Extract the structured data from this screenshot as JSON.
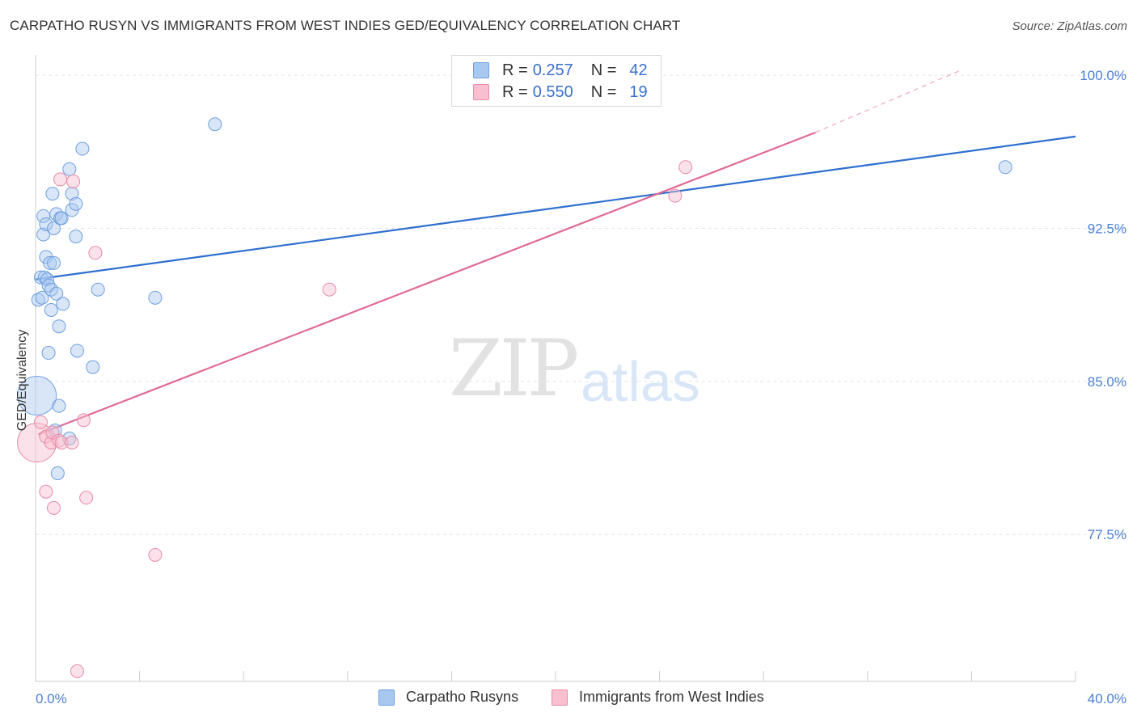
{
  "title": "CARPATHO RUSYN VS IMMIGRANTS FROM WEST INDIES GED/EQUIVALENCY CORRELATION CHART",
  "source": "Source: ZipAtlas.com",
  "watermark": {
    "zip": "ZIP",
    "atlas": "atlas"
  },
  "legend": {
    "rows": [
      {
        "r_label": "R =",
        "r_value": "0.257",
        "n_label": "N =",
        "n_value": "42",
        "color": "#a9c8f0",
        "border": "#6e9fe0"
      },
      {
        "r_label": "R =",
        "r_value": "0.550",
        "n_label": "N =",
        "n_value": "19",
        "color": "#f7bfd0",
        "border": "#e98aa8"
      }
    ]
  },
  "bottom_legend": {
    "items": [
      {
        "label": "Carpatho Rusyns",
        "color": "#a9c8f0",
        "border": "#6e9fe0"
      },
      {
        "label": "Immigrants from West Indies",
        "color": "#f7bfd0",
        "border": "#e98aa8"
      }
    ]
  },
  "chart_data": {
    "type": "scatter",
    "title": "CARPATHO RUSYN VS IMMIGRANTS FROM WEST INDIES GED/EQUIVALENCY CORRELATION CHART",
    "xlabel": "",
    "ylabel": "GED/Equivalency",
    "xlim": [
      0,
      40
    ],
    "ylim": [
      70.3,
      100.6
    ],
    "x_tick_labels": [
      "0.0%",
      "40.0%"
    ],
    "y_ticks": [
      77.5,
      85.0,
      92.5,
      100.0
    ],
    "y_tick_labels": [
      "77.5%",
      "85.0%",
      "92.5%",
      "100.0%"
    ],
    "grid": true,
    "series": [
      {
        "name": "Carpatho Rusyns",
        "color": "#6e9fe0",
        "fill": "#a9c8f0",
        "points": [
          {
            "x": 0.05,
            "y": 84.3,
            "big": true
          },
          {
            "x": 0.1,
            "y": 89.0
          },
          {
            "x": 0.2,
            "y": 90.1
          },
          {
            "x": 0.25,
            "y": 89.1
          },
          {
            "x": 0.3,
            "y": 93.1
          },
          {
            "x": 0.3,
            "y": 92.2
          },
          {
            "x": 0.35,
            "y": 90.1
          },
          {
            "x": 0.4,
            "y": 91.1
          },
          {
            "x": 0.4,
            "y": 92.7
          },
          {
            "x": 0.45,
            "y": 90.0
          },
          {
            "x": 0.5,
            "y": 86.4
          },
          {
            "x": 0.5,
            "y": 89.7
          },
          {
            "x": 0.55,
            "y": 90.8
          },
          {
            "x": 0.6,
            "y": 89.5
          },
          {
            "x": 0.6,
            "y": 88.5
          },
          {
            "x": 0.65,
            "y": 94.2
          },
          {
            "x": 0.7,
            "y": 90.8
          },
          {
            "x": 0.7,
            "y": 92.5
          },
          {
            "x": 0.75,
            "y": 82.6
          },
          {
            "x": 0.8,
            "y": 89.3
          },
          {
            "x": 0.8,
            "y": 93.2
          },
          {
            "x": 0.85,
            "y": 80.5
          },
          {
            "x": 0.9,
            "y": 87.7
          },
          {
            "x": 0.9,
            "y": 83.8
          },
          {
            "x": 0.95,
            "y": 93.0
          },
          {
            "x": 1.0,
            "y": 93.0
          },
          {
            "x": 1.05,
            "y": 88.8
          },
          {
            "x": 1.3,
            "y": 95.4
          },
          {
            "x": 1.3,
            "y": 82.2
          },
          {
            "x": 1.4,
            "y": 94.2
          },
          {
            "x": 1.4,
            "y": 93.4
          },
          {
            "x": 1.55,
            "y": 92.1
          },
          {
            "x": 1.55,
            "y": 93.7
          },
          {
            "x": 1.6,
            "y": 86.5
          },
          {
            "x": 1.8,
            "y": 96.4
          },
          {
            "x": 2.2,
            "y": 85.7
          },
          {
            "x": 2.4,
            "y": 89.5
          },
          {
            "x": 4.6,
            "y": 89.1
          },
          {
            "x": 6.9,
            "y": 97.6
          },
          {
            "x": 37.3,
            "y": 95.5
          }
        ],
        "trend": {
          "x1": 0,
          "y1": 90.0,
          "x2": 40,
          "y2": 97.0
        }
      },
      {
        "name": "Immigrants from West Indies",
        "color": "#e98aa8",
        "fill": "#f7bfd0",
        "points": [
          {
            "x": 0.05,
            "y": 82.0,
            "big": true
          },
          {
            "x": 0.2,
            "y": 83.0
          },
          {
            "x": 0.4,
            "y": 82.3
          },
          {
            "x": 0.4,
            "y": 79.6
          },
          {
            "x": 0.6,
            "y": 82.0
          },
          {
            "x": 0.65,
            "y": 82.5
          },
          {
            "x": 0.7,
            "y": 78.8
          },
          {
            "x": 0.9,
            "y": 82.1
          },
          {
            "x": 0.95,
            "y": 94.9
          },
          {
            "x": 1.0,
            "y": 82.0
          },
          {
            "x": 1.4,
            "y": 82.0
          },
          {
            "x": 1.45,
            "y": 94.8
          },
          {
            "x": 1.6,
            "y": 70.8
          },
          {
            "x": 1.85,
            "y": 83.1
          },
          {
            "x": 1.95,
            "y": 79.3
          },
          {
            "x": 2.3,
            "y": 91.3
          },
          {
            "x": 4.6,
            "y": 76.5
          },
          {
            "x": 11.3,
            "y": 89.5
          },
          {
            "x": 24.6,
            "y": 94.1
          },
          {
            "x": 25.0,
            "y": 95.5
          }
        ],
        "trend": {
          "x1": 0.1,
          "y1": 82.4,
          "x2": 30.0,
          "y2": 97.2
        },
        "trend_dashed_end": {
          "x": 35.5,
          "y": 100.2
        }
      }
    ]
  }
}
